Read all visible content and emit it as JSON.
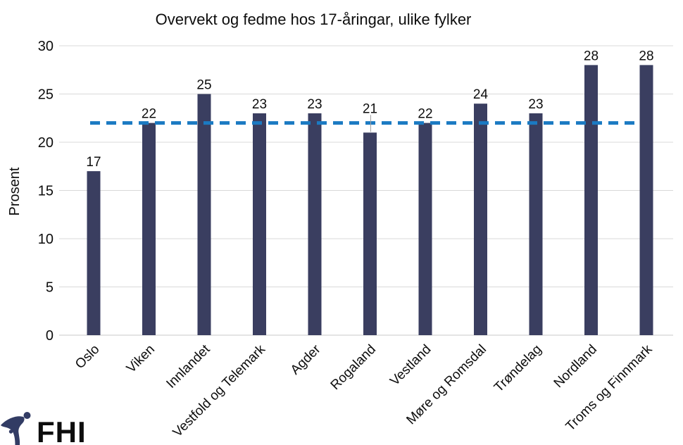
{
  "title": "Overvekt og fedme hos 17-åringar, ulike fylker",
  "logo": {
    "text": "FHI"
  },
  "colors": {
    "bar": "#3a3e60",
    "reference_line": "#1b7ac2",
    "gridline": "#d9d9d9",
    "axis_line": "#c9c9c9",
    "text": "#0d0d0d",
    "logo_navy": "#323c64",
    "leader_line": "#a0a0a0"
  },
  "chart_data": {
    "type": "bar",
    "title": "Overvekt og fedme hos 17-åringar, ulike fylker",
    "categories": [
      "Oslo",
      "Viken",
      "Innlandet",
      "Vestfold og Telemark",
      "Agder",
      "Rogaland",
      "Vestland",
      "Møre og Romsdal",
      "Trøndelag",
      "Nordland",
      "Troms og Finnmark"
    ],
    "values": [
      17,
      22,
      25,
      23,
      23,
      21,
      22,
      24,
      23,
      28,
      28
    ],
    "data_labels": true,
    "xlabel": "",
    "ylabel": "Prosent",
    "ylim": [
      0,
      30
    ],
    "yticks": [
      0,
      5,
      10,
      15,
      20,
      25,
      30
    ],
    "grid": true,
    "legend": false,
    "reference_line": {
      "value": 22,
      "style": "dashed"
    }
  }
}
